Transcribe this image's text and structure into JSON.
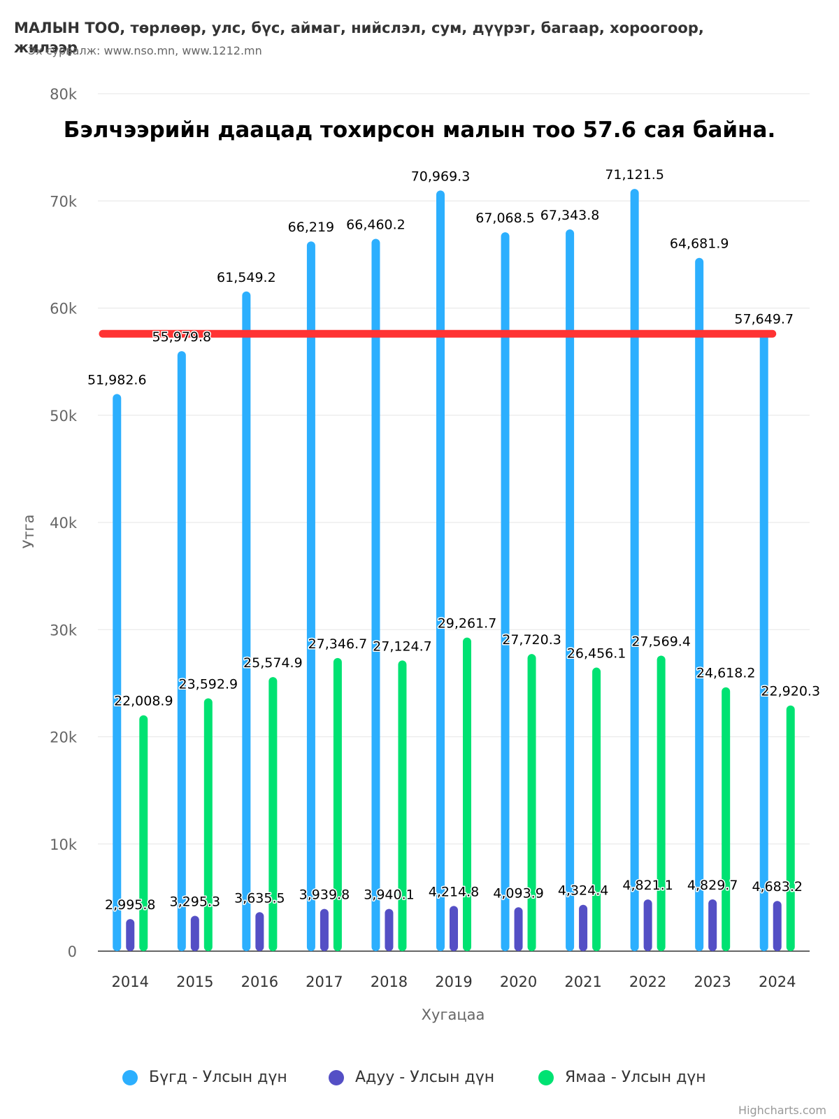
{
  "header": {
    "title": "МАЛЫН ТОО, төрлөөр, улс, бүс, аймаг, нийслэл, сум, дүүрэг, багаар, хороогоор, жилээр",
    "subtitle": "Эх сурвалж: www.nso.mn, www.1212.mn"
  },
  "chart_data": {
    "type": "bar",
    "annotation": "Бэлчээрийн даацад тохирсон малын тоо 57.6 сая байна.",
    "xlabel": "Хугацаа",
    "ylabel": "Утга",
    "ylim": [
      0,
      80000
    ],
    "yticks": [
      "0",
      "10k",
      "20k",
      "30k",
      "40k",
      "50k",
      "60k",
      "70k",
      "80k"
    ],
    "grid": true,
    "legend_position": "bottom",
    "categories": [
      "2014",
      "2015",
      "2016",
      "2017",
      "2018",
      "2019",
      "2020",
      "2021",
      "2022",
      "2023",
      "2024"
    ],
    "series": [
      {
        "name": "Бүгд - Улсын дүн",
        "color": "#2caffe",
        "values": [
          51982.6,
          55979.8,
          61549.2,
          66219,
          66460.2,
          70969.3,
          67068.5,
          67343.8,
          71121.5,
          64681.9,
          57649.7
        ],
        "labels": [
          "51,982.6",
          "55,979.8",
          "61,549.2",
          "66,219",
          "66,460.2",
          "70,969.3",
          "67,068.5",
          "67,343.8",
          "71,121.5",
          "64,681.9",
          "57,649.7"
        ]
      },
      {
        "name": "Адуу - Улсын дүн",
        "color": "#544fc5",
        "values": [
          2995.8,
          3295.3,
          3635.5,
          3939.8,
          3940.1,
          4214.8,
          4093.9,
          4324.4,
          4821.1,
          4829.7,
          4683.2
        ],
        "labels": [
          "2,995.8",
          "3,295.3",
          "3,635.5",
          "3,939.8",
          "3,940.1",
          "4,214.8",
          "4,093.9",
          "4,324.4",
          "4,821.1",
          "4,829.7",
          "4,683.2"
        ]
      },
      {
        "name": "Ямаа - Улсын дүн",
        "color": "#00e272",
        "values": [
          22008.9,
          23592.9,
          25574.9,
          27346.7,
          27124.7,
          29261.7,
          27720.3,
          26456.1,
          27569.4,
          24618.2,
          22920.3
        ],
        "labels": [
          "22,008.9",
          "23,592.9",
          "25,574.9",
          "27,346.7",
          "27,124.7",
          "29,261.7",
          "27,720.3",
          "26,456.1",
          "27,569.4",
          "24,618.2",
          "22,920.3"
        ]
      }
    ],
    "reference_line": {
      "value": 57600,
      "color": "#ff3333"
    }
  },
  "credits": "Highcharts.com"
}
